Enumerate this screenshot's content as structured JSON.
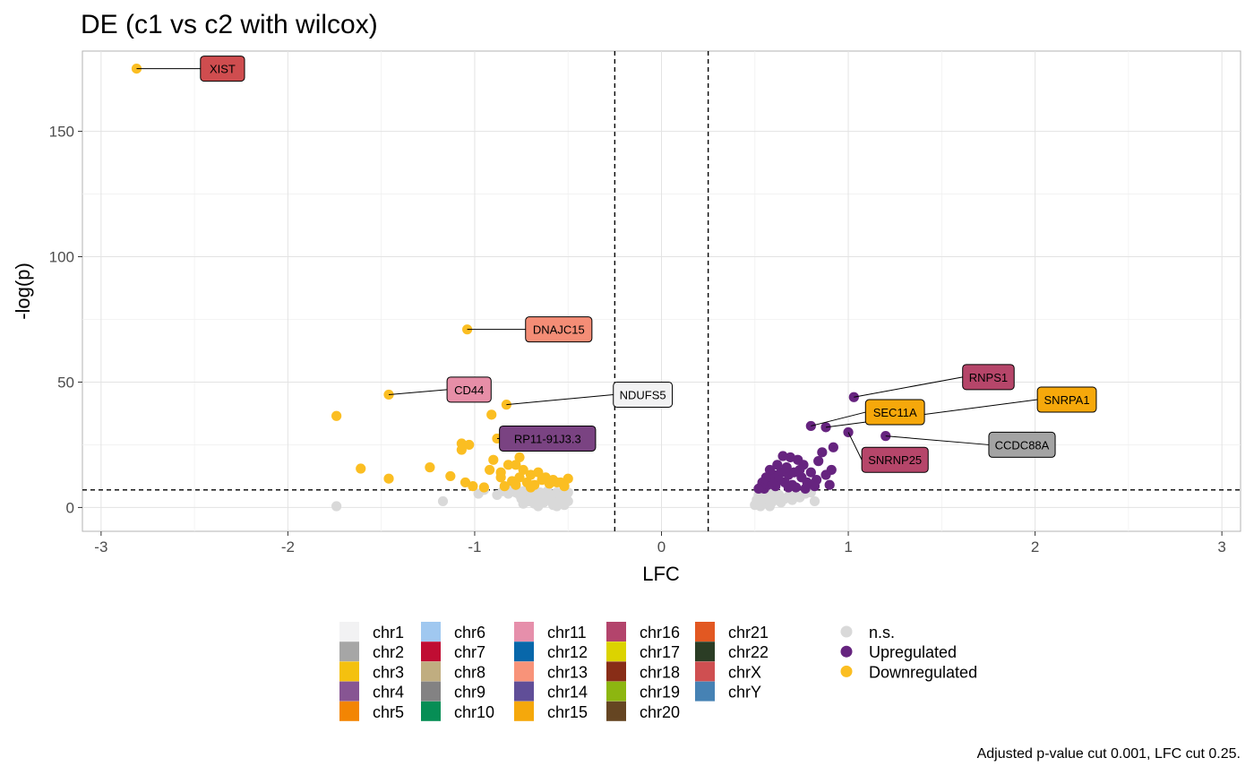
{
  "chart_data": {
    "type": "scatter",
    "title": "DE (c1 vs c2 with wilcox)",
    "xlabel": "LFC",
    "ylabel": "-log(p)",
    "xlim": [
      -3.1,
      3.1
    ],
    "ylim": [
      -9.5,
      182
    ],
    "x_ticks": [
      -3,
      -2,
      -1,
      0,
      1,
      2,
      3
    ],
    "y_ticks": [
      0,
      50,
      100,
      150
    ],
    "grid": true,
    "thresholds": {
      "lfc": 0.25,
      "neg_log_p": 7
    },
    "caption": "Adjusted p-value cut 0.001, LFC cut 0.25.",
    "status_colors": {
      "n.s.": "#d9d9d9",
      "Upregulated": "#66247f",
      "Downregulated": "#fbbe22"
    },
    "series": [
      {
        "name": "n.s.",
        "points": [
          [
            -1.74,
            0.5
          ],
          [
            -1.17,
            2.5
          ],
          [
            -0.98,
            5.5
          ],
          [
            -0.95,
            7
          ],
          [
            -0.88,
            5
          ],
          [
            -0.85,
            6.5
          ],
          [
            -0.82,
            5.5
          ],
          [
            -0.8,
            7
          ],
          [
            -0.78,
            6
          ],
          [
            -0.76,
            5
          ],
          [
            -0.75,
            3.5
          ],
          [
            -0.74,
            6.5
          ],
          [
            -0.72,
            4
          ],
          [
            -0.71,
            2.5
          ],
          [
            -0.7,
            5.5
          ],
          [
            -0.69,
            6.5
          ],
          [
            -0.68,
            1.5
          ],
          [
            -0.67,
            4.5
          ],
          [
            -0.66,
            3
          ],
          [
            -0.65,
            6
          ],
          [
            -0.64,
            5
          ],
          [
            -0.63,
            2
          ],
          [
            -0.62,
            4
          ],
          [
            -0.61,
            6.5
          ],
          [
            -0.6,
            3.5
          ],
          [
            -0.59,
            5
          ],
          [
            -0.58,
            1
          ],
          [
            -0.57,
            4.5
          ],
          [
            -0.56,
            6
          ],
          [
            -0.55,
            2.5
          ],
          [
            -0.54,
            3.5
          ],
          [
            -0.53,
            5.5
          ],
          [
            -0.52,
            1
          ],
          [
            -0.51,
            4
          ],
          [
            -0.5,
            2.5
          ],
          [
            -0.5,
            6
          ],
          [
            -0.52,
            6.5
          ],
          [
            -0.56,
            0.5
          ],
          [
            -0.66,
            0.5
          ],
          [
            -0.74,
            1.5
          ],
          [
            0.5,
            1
          ],
          [
            0.51,
            3
          ],
          [
            0.52,
            5
          ],
          [
            0.52,
            2
          ],
          [
            0.53,
            0.5
          ],
          [
            0.54,
            4
          ],
          [
            0.55,
            2.5
          ],
          [
            0.55,
            6
          ],
          [
            0.56,
            1.5
          ],
          [
            0.57,
            3.5
          ],
          [
            0.58,
            5
          ],
          [
            0.58,
            0.5
          ],
          [
            0.59,
            2
          ],
          [
            0.6,
            4
          ],
          [
            0.6,
            6.5
          ],
          [
            0.62,
            3
          ],
          [
            0.63,
            5
          ],
          [
            0.64,
            2
          ],
          [
            0.66,
            3.5
          ],
          [
            0.68,
            4.5
          ],
          [
            0.7,
            3
          ],
          [
            0.72,
            5
          ],
          [
            0.74,
            4
          ],
          [
            0.77,
            5.5
          ],
          [
            0.8,
            6
          ],
          [
            0.82,
            2.5
          ]
        ]
      },
      {
        "name": "Upregulated",
        "points": [
          [
            0.8,
            32.5
          ],
          [
            0.88,
            32
          ],
          [
            1.03,
            44
          ],
          [
            1.0,
            30
          ],
          [
            1.2,
            28.5
          ],
          [
            0.92,
            24
          ],
          [
            0.91,
            15
          ],
          [
            0.9,
            9
          ],
          [
            0.88,
            13
          ],
          [
            0.86,
            22
          ],
          [
            0.84,
            18.5
          ],
          [
            0.83,
            11
          ],
          [
            0.82,
            8.5
          ],
          [
            0.8,
            14
          ],
          [
            0.78,
            10
          ],
          [
            0.76,
            17
          ],
          [
            0.75,
            12
          ],
          [
            0.73,
            19
          ],
          [
            0.72,
            8
          ],
          [
            0.71,
            14
          ],
          [
            0.7,
            9
          ],
          [
            0.69,
            20
          ],
          [
            0.68,
            13
          ],
          [
            0.67,
            16
          ],
          [
            0.66,
            10
          ],
          [
            0.65,
            20.5
          ],
          [
            0.64,
            14
          ],
          [
            0.63,
            11
          ],
          [
            0.62,
            17
          ],
          [
            0.61,
            8.5
          ],
          [
            0.6,
            13
          ],
          [
            0.59,
            10
          ],
          [
            0.58,
            15
          ],
          [
            0.57,
            9
          ],
          [
            0.56,
            12
          ],
          [
            0.55,
            7.5
          ],
          [
            0.54,
            10
          ],
          [
            0.53,
            8
          ],
          [
            0.52,
            7.5
          ],
          [
            0.74,
            15
          ],
          [
            0.68,
            8
          ],
          [
            0.77,
            7.5
          ]
        ]
      },
      {
        "name": "Downregulated",
        "points": [
          [
            -2.81,
            175
          ],
          [
            -1.04,
            71
          ],
          [
            -1.46,
            45
          ],
          [
            -0.83,
            41
          ],
          [
            -1.74,
            36.5
          ],
          [
            -0.91,
            37
          ],
          [
            -0.88,
            27.5
          ],
          [
            -1.07,
            25.5
          ],
          [
            -1.03,
            25
          ],
          [
            -1.07,
            23
          ],
          [
            -0.9,
            19
          ],
          [
            -0.76,
            20
          ],
          [
            -0.82,
            17
          ],
          [
            -0.92,
            15
          ],
          [
            -0.86,
            14
          ],
          [
            -0.78,
            17
          ],
          [
            -0.74,
            15
          ],
          [
            -0.7,
            13
          ],
          [
            -0.66,
            14
          ],
          [
            -0.62,
            12
          ],
          [
            -0.58,
            11
          ],
          [
            -0.54,
            10
          ],
          [
            -0.5,
            11.5
          ],
          [
            -0.86,
            12
          ],
          [
            -0.8,
            10.5
          ],
          [
            -0.76,
            12
          ],
          [
            -0.72,
            10
          ],
          [
            -0.68,
            9
          ],
          [
            -0.64,
            11
          ],
          [
            -0.6,
            9.5
          ],
          [
            -0.56,
            10
          ],
          [
            -0.52,
            8.5
          ],
          [
            -0.84,
            8.5
          ],
          [
            -0.78,
            9
          ],
          [
            -1.24,
            16
          ],
          [
            -1.61,
            15.5
          ],
          [
            -1.46,
            11.5
          ],
          [
            -1.13,
            12.5
          ],
          [
            -1.05,
            10
          ],
          [
            -1.01,
            8.5
          ],
          [
            -0.95,
            8
          ],
          [
            -0.7,
            8
          ]
        ]
      }
    ],
    "labels": [
      {
        "text": "XIST",
        "x": -2.81,
        "y": 175,
        "lx": -2.35,
        "ly": 175,
        "fill": "#cf4d4f",
        "color": "#000"
      },
      {
        "text": "DNAJC15",
        "x": -1.04,
        "y": 71,
        "lx": -0.55,
        "ly": 71,
        "fill": "#f48d76",
        "color": "#000"
      },
      {
        "text": "CD44",
        "x": -1.46,
        "y": 45,
        "lx": -1.03,
        "ly": 47,
        "fill": "#e68ea7",
        "color": "#000"
      },
      {
        "text": "NDUFS5",
        "x": -0.83,
        "y": 41,
        "lx": -0.1,
        "ly": 45,
        "fill": "#f2f2f3",
        "color": "#000"
      },
      {
        "text": "RP11-91J3.3",
        "x": -0.88,
        "y": 27.5,
        "lx": -0.61,
        "ly": 27.5,
        "fill": "#7a4382",
        "color": "#000"
      },
      {
        "text": "RNPS1",
        "x": 1.03,
        "y": 44,
        "lx": 1.75,
        "ly": 52,
        "fill": "#b6466a",
        "color": "#000"
      },
      {
        "text": "SNRPA1",
        "x": 0.88,
        "y": 32,
        "lx": 2.17,
        "ly": 43,
        "fill": "#f6a80b",
        "color": "#000"
      },
      {
        "text": "SEC11A",
        "x": 0.8,
        "y": 32.5,
        "lx": 1.25,
        "ly": 38,
        "fill": "#f6a80b",
        "color": "#000"
      },
      {
        "text": "CCDC88A",
        "x": 1.2,
        "y": 28.5,
        "lx": 1.93,
        "ly": 25,
        "fill": "#a3a3a3",
        "color": "#000"
      },
      {
        "text": "SNRNP25",
        "x": 1.0,
        "y": 30,
        "lx": 1.25,
        "ly": 19,
        "fill": "#b6466a",
        "color": "#000"
      }
    ],
    "legend": {
      "position": "bottom",
      "chromosomes": [
        {
          "name": "chr1",
          "color": "#f2f2f3"
        },
        {
          "name": "chr2",
          "color": "#a6a6a6"
        },
        {
          "name": "chr3",
          "color": "#f4c10f"
        },
        {
          "name": "chr4",
          "color": "#875593"
        },
        {
          "name": "chr5",
          "color": "#f38503"
        },
        {
          "name": "chr6",
          "color": "#a0c8f0"
        },
        {
          "name": "chr7",
          "color": "#c00d33"
        },
        {
          "name": "chr8",
          "color": "#c0ad80"
        },
        {
          "name": "chr9",
          "color": "#838283"
        },
        {
          "name": "chr10",
          "color": "#068e55"
        },
        {
          "name": "chr11",
          "color": "#e68fab"
        },
        {
          "name": "chr12",
          "color": "#0867aa"
        },
        {
          "name": "chr13",
          "color": "#f89379"
        },
        {
          "name": "chr14",
          "color": "#604e98"
        },
        {
          "name": "chr15",
          "color": "#f5a80b"
        },
        {
          "name": "chr16",
          "color": "#b3446c"
        },
        {
          "name": "chr17",
          "color": "#dcd300"
        },
        {
          "name": "chr18",
          "color": "#882d17"
        },
        {
          "name": "chr19",
          "color": "#8db610"
        },
        {
          "name": "chr20",
          "color": "#654522"
        },
        {
          "name": "chr21",
          "color": "#e25822"
        },
        {
          "name": "chr22",
          "color": "#2b3d25"
        },
        {
          "name": "chrX",
          "color": "#cf4f51"
        },
        {
          "name": "chrY",
          "color": "#4682b4"
        }
      ],
      "status": [
        "n.s.",
        "Upregulated",
        "Downregulated"
      ]
    }
  }
}
